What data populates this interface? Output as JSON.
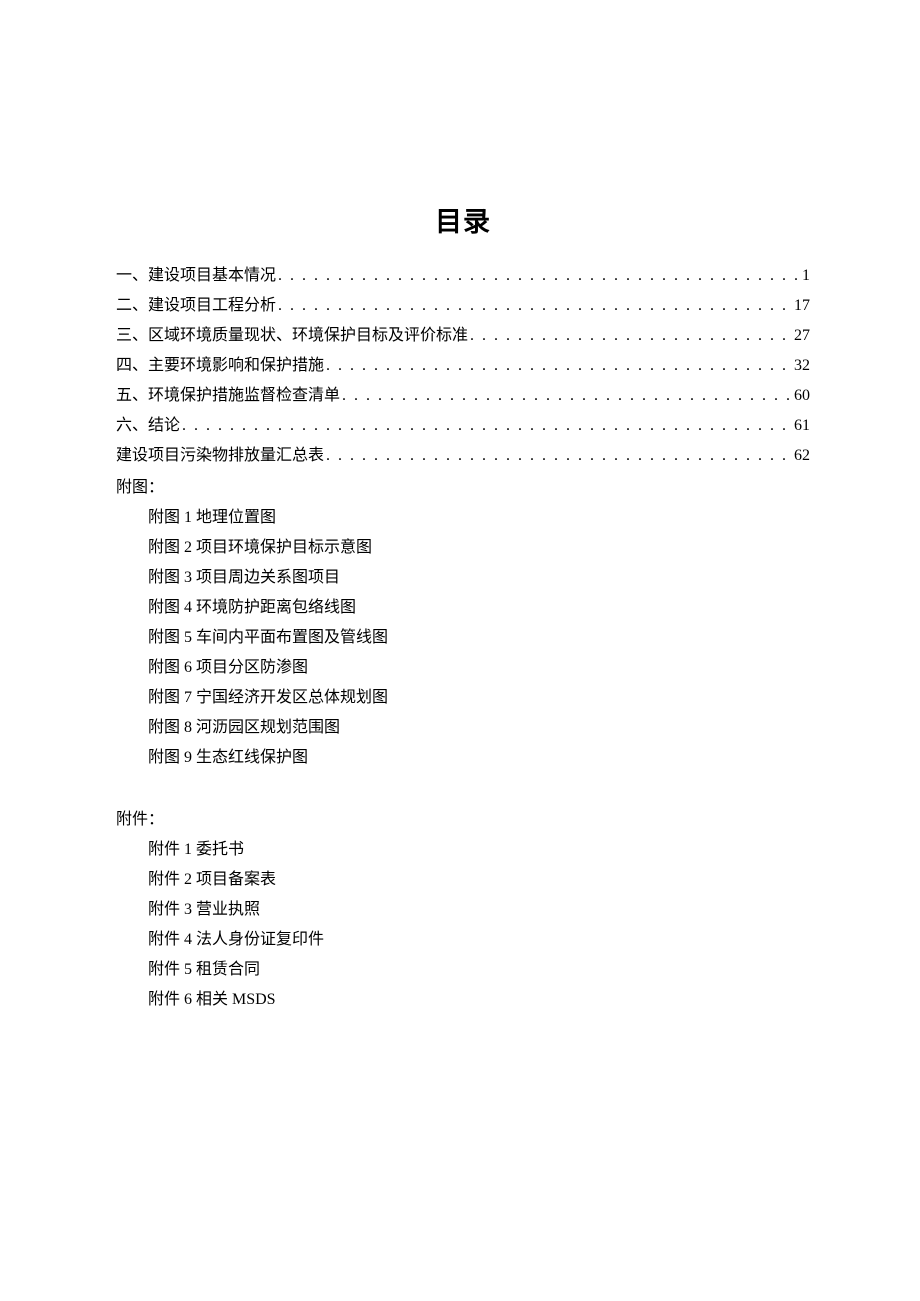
{
  "title": "目录",
  "toc": [
    {
      "label": "一、建设项目基本情况",
      "page": "1"
    },
    {
      "label": "二、建设项目工程分析",
      "page": "17"
    },
    {
      "label": "三、区域环境质量现状、环境保护目标及评价标准",
      "page": "27"
    },
    {
      "label": "四、主要环境影响和保护措施",
      "page": "32"
    },
    {
      "label": "五、环境保护措施监督检查清单",
      "page": "60"
    },
    {
      "label": "六、结论",
      "page": "61"
    },
    {
      "label": "建设项目污染物排放量汇总表",
      "page": "62"
    }
  ],
  "figures_header": "附图：",
  "figures": [
    "附图 1 地理位置图",
    "附图 2 项目环境保护目标示意图",
    "附图 3 项目周边关系图项目",
    "附图 4 环境防护距离包络线图",
    "附图 5 车间内平面布置图及管线图",
    "附图 6 项目分区防渗图",
    "附图 7 宁国经济开发区总体规划图",
    "附图 8 河沥园区规划范围图",
    "附图 9 生态红线保护图"
  ],
  "attachments_header": "附件：",
  "attachments": [
    "附件 1 委托书",
    "附件 2 项目备案表",
    "附件 3 营业执照",
    "附件 4 法人身份证复印件",
    "附件 5 租赁合同",
    "附件 6 相关 MSDS"
  ]
}
